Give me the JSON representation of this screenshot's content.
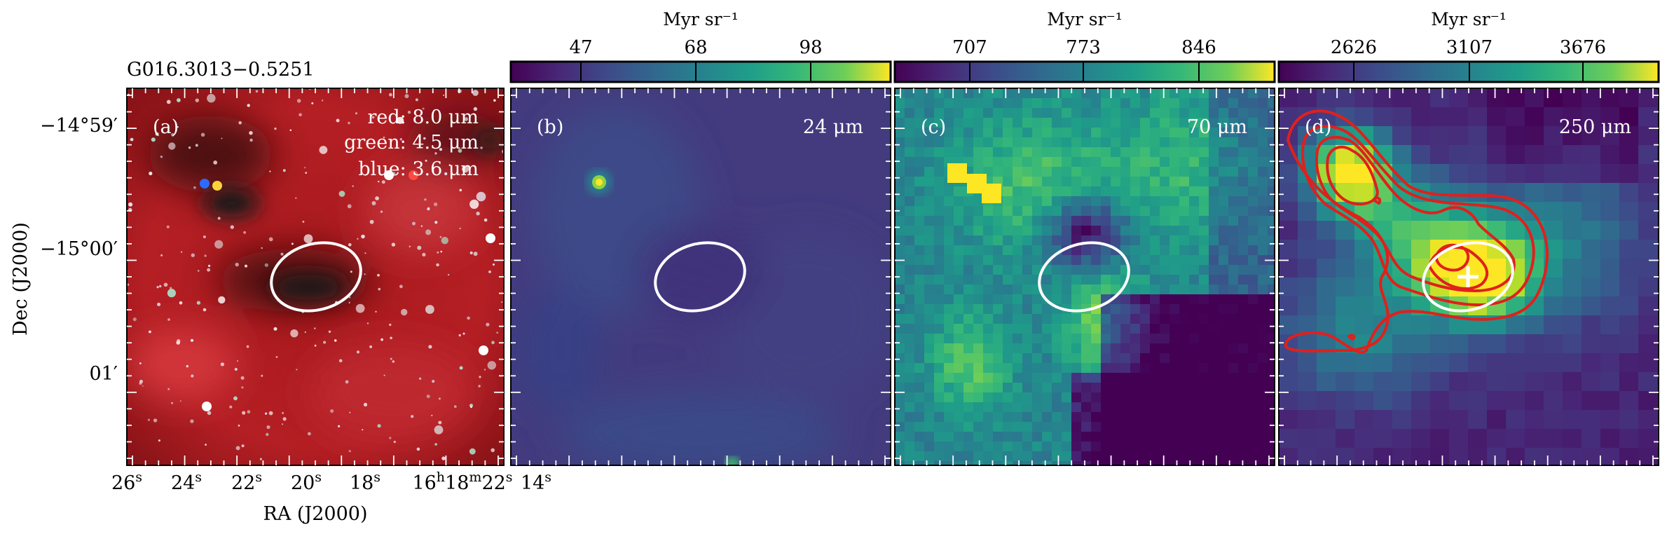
{
  "figure": {
    "source_title": "G016.3013−0.5251",
    "dec_axis_label": "Dec (J2000)",
    "ra_axis_label": "RA (J2000)",
    "dec_ticks": [
      "−14°59′",
      "−15°00′",
      "01′"
    ],
    "ra_ticks": [
      {
        "base": "26",
        "sup": "s"
      },
      {
        "base": "24",
        "sup": "s"
      },
      {
        "base": "22",
        "sup": "s"
      },
      {
        "base": "20",
        "sup": "s"
      },
      {
        "base": "18",
        "sup": "s"
      },
      {
        "base": "16",
        "sup": "h",
        "base2": "18",
        "sup2": "m",
        "base3": "22",
        "sup3": "s"
      },
      {
        "base": "14",
        "sup": "s"
      }
    ]
  },
  "panels": [
    {
      "tag": "(a)",
      "legend": [
        "red: 8.0 μm",
        "green: 4.5 μm",
        "blue: 3.6 μm"
      ]
    },
    {
      "tag": "(b)",
      "band": "24 μm",
      "colorbar": {
        "unit": "Myr sr⁻¹",
        "ticks": [
          "47",
          "68",
          "98"
        ]
      }
    },
    {
      "tag": "(c)",
      "band": "70 μm",
      "colorbar": {
        "unit": "Myr sr⁻¹",
        "ticks": [
          "707",
          "773",
          "846"
        ]
      }
    },
    {
      "tag": "(d)",
      "band": "250 μm",
      "colorbar": {
        "unit": "Myr sr⁻¹",
        "ticks": [
          "2626",
          "3107",
          "3676"
        ]
      }
    }
  ],
  "colors": {
    "viridis_dark": "#440154",
    "viridis_mid": "#21918c",
    "viridis_bright": "#fde725",
    "rgb_red": "#b01820",
    "contour": "#e0201c",
    "ellipse": "#ffffff"
  }
}
